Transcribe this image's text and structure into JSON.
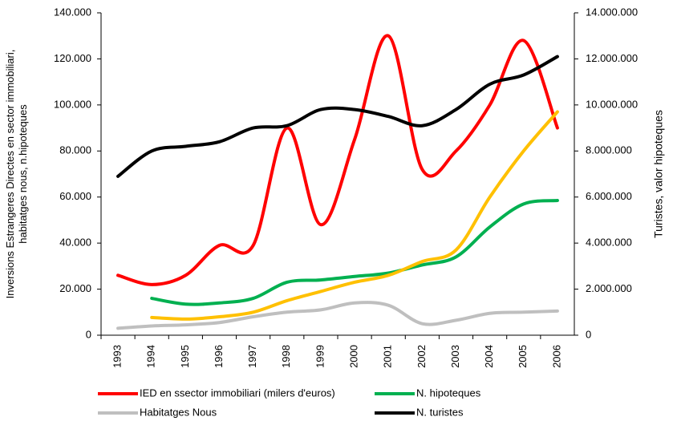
{
  "chart_data": {
    "type": "line",
    "categories": [
      "1993",
      "1994",
      "1995",
      "1996",
      "1997",
      "1998",
      "1999",
      "2000",
      "2001",
      "2002",
      "2003",
      "2004",
      "2005",
      "2006"
    ],
    "ylabel": "Inversions Estrangeres Directes en sector immobiliari, habitatges nous, n.hipoteques",
    "y2label": "Turistes, valor hipoteques",
    "ylim": [
      0,
      140000
    ],
    "yticks": [
      0,
      {
        "value": 20000,
        "label": "20.000"
      },
      {
        "value": 40000,
        "label": "40.000"
      },
      {
        "value": 60000,
        "label": "60.000"
      },
      {
        "value": 80000,
        "label": "80.000"
      },
      {
        "value": 100000,
        "label": "100.000"
      },
      {
        "value": 120000,
        "label": "120.000"
      },
      {
        "value": 140000,
        "label": "140.000"
      }
    ],
    "y2lim": [
      0,
      14000000
    ],
    "y2ticks": [
      0,
      {
        "value": 2000000,
        "label": "2.000.000"
      },
      {
        "value": 4000000,
        "label": "4.000.000"
      },
      {
        "value": 6000000,
        "label": "6.000.000"
      },
      {
        "value": 8000000,
        "label": "8.000.000"
      },
      {
        "value": 10000000,
        "label": "10.000.000"
      },
      {
        "value": 12000000,
        "label": "12.000.000"
      },
      {
        "value": 14000000,
        "label": "14.000.000"
      }
    ],
    "series": [
      {
        "name": "IED en ssector immobiliari (milers d'euros)",
        "color": "#ff0000",
        "values": [
          26000,
          22000,
          26000,
          39000,
          39000,
          90000,
          48000,
          85000,
          130000,
          72000,
          80000,
          100000,
          128000,
          90000
        ]
      },
      {
        "name": "N. hipoteques",
        "color": "#00b050",
        "values": [
          null,
          16000,
          13500,
          14000,
          16000,
          23000,
          24000,
          25500,
          27000,
          30500,
          34000,
          47000,
          57000,
          58500
        ]
      },
      {
        "name": "Habitatges Nous",
        "color": "#bfbfbf",
        "values": [
          3000,
          4000,
          4500,
          5500,
          8000,
          10000,
          11000,
          14000,
          13000,
          5000,
          6500,
          9500,
          10000,
          10500
        ]
      },
      {
        "name": "N. turistes",
        "color": "#000000",
        "axis": "y2",
        "values": [
          6900000,
          8000000,
          8200000,
          8400000,
          9000000,
          9100000,
          9800000,
          9800000,
          9500000,
          9100000,
          9800000,
          10900000,
          11300000,
          12100000
        ]
      },
      {
        "color": "#ffc000",
        "axis": "y2",
        "values": [
          null,
          770000,
          700000,
          800000,
          1000000,
          1500000,
          1900000,
          2300000,
          2600000,
          3200000,
          3700000,
          6000000,
          8000000,
          9700000
        ]
      }
    ]
  }
}
